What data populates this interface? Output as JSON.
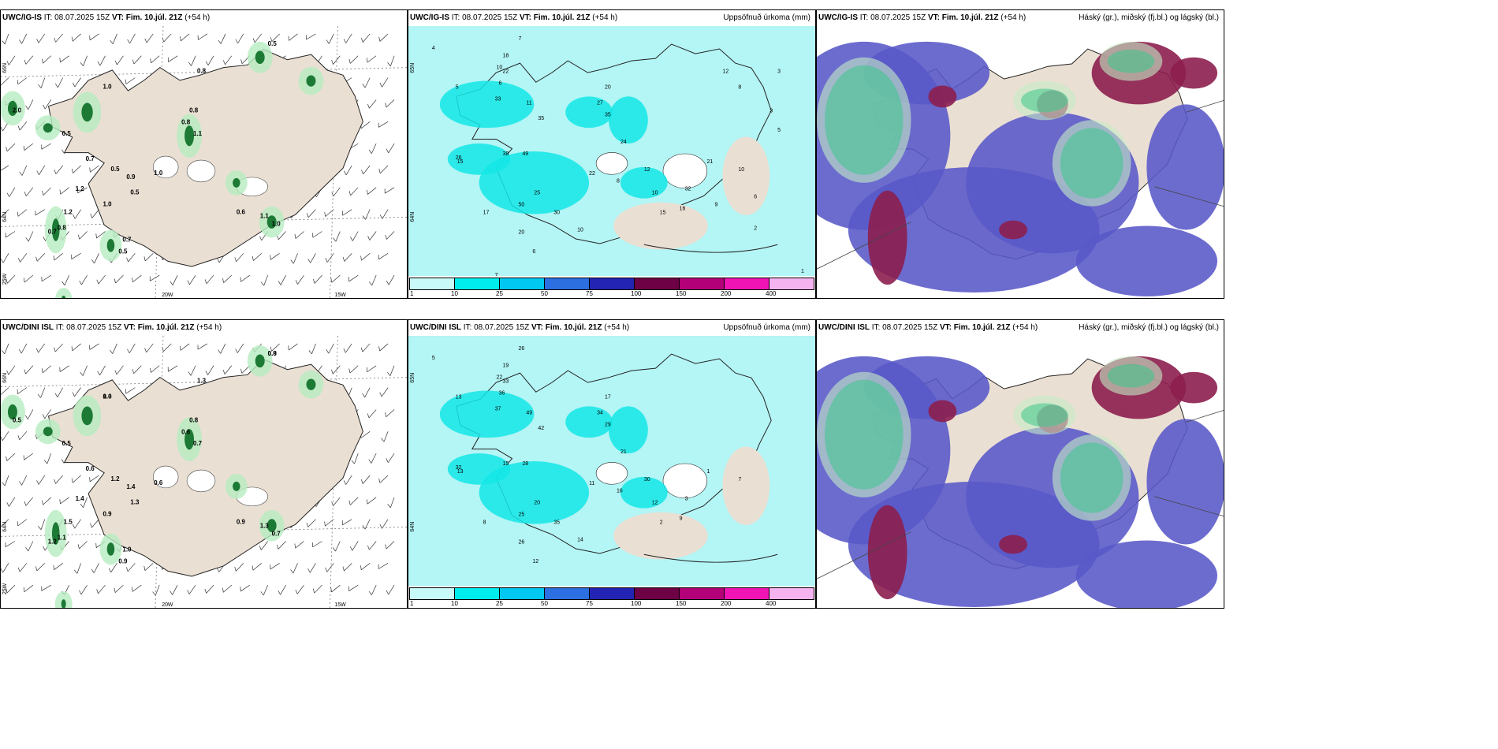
{
  "panels": [
    {
      "model": "UWC/IG-IS",
      "it_label": "IT:",
      "it": "08.07.2025 15Z",
      "vt_label": "VT:",
      "vt": "Fim. 10.júl. 21Z",
      "lead": "(+54 h)",
      "right": "",
      "lon_labels": [
        "20W",
        "15W"
      ],
      "lat_labels": [
        "66N",
        "64N",
        "25W"
      ],
      "values": [
        "0.5",
        "1.0",
        "2.0",
        "0.8",
        "0.8",
        "0.8",
        "1.1",
        "0.5",
        "0.7",
        "0.5",
        "1.2",
        "0.9",
        "0.5",
        "1.0",
        "1.0",
        "0.7",
        "0.5",
        "1.2",
        "0.8",
        "0.7",
        "0.6",
        "1.1",
        "1.0"
      ]
    },
    {
      "model": "UWC/IG-IS",
      "it_label": "IT:",
      "it": "08.07.2025 15Z",
      "vt_label": "VT:",
      "vt": "Fim. 10.júl. 21Z",
      "lead": "(+54 h)",
      "right": "Uppsöfnuð úrkoma (mm)",
      "lat_labels": [
        "65N",
        "64N"
      ],
      "values": [
        "4",
        "7",
        "5",
        "10",
        "6",
        "18",
        "22",
        "33",
        "11",
        "35",
        "26",
        "38",
        "49",
        "25",
        "50",
        "30",
        "20",
        "10",
        "6",
        "17",
        "15",
        "22",
        "27",
        "35",
        "24",
        "20",
        "8",
        "12",
        "10",
        "16",
        "15",
        "32",
        "21",
        "10",
        "6",
        "3",
        "5",
        "8",
        "12",
        "9",
        "2",
        "3",
        "1",
        "7"
      ]
    },
    {
      "model": "UWC/IG-IS",
      "it_label": "IT:",
      "it": "08.07.2025 15Z",
      "vt_label": "VT:",
      "vt": "Fim. 10.júl. 21Z",
      "lead": "(+54 h)",
      "right": "Háský (gr.), miðský (fj.bl.) og lágský (bl.)"
    },
    {
      "model": "UWC/DINI ISL",
      "it_label": "IT:",
      "it": "08.07.2025 15Z",
      "vt_label": "VT:",
      "vt": "Fim. 10.júl. 21Z",
      "lead": "(+54 h)",
      "right": "",
      "lon_labels": [
        "20W",
        "15W"
      ],
      "lat_labels": [
        "66N",
        "64N",
        "25W"
      ],
      "values": [
        "0.8",
        "0.6",
        "0.5",
        "1.3",
        "0.8",
        "0.6",
        "0.7",
        "0.5",
        "0.6",
        "1.2",
        "1.4",
        "1.4",
        "1.3",
        "0.6",
        "0.9",
        "1.0",
        "0.9",
        "1.5",
        "1.1",
        "1.2",
        "0.9",
        "1.3",
        "0.7",
        "0.9",
        "1.0"
      ]
    },
    {
      "model": "UWC/DINI ISL",
      "it_label": "IT:",
      "it": "08.07.2025 15Z",
      "vt_label": "VT:",
      "vt": "Fim. 10.júl. 21Z",
      "lead": "(+54 h)",
      "right": "Uppsöfnuð úrkoma (mm)",
      "lat_labels": [
        "65N",
        "64N"
      ],
      "values": [
        "5",
        "26",
        "13",
        "22",
        "36",
        "19",
        "33",
        "37",
        "49",
        "42",
        "32",
        "15",
        "28",
        "20",
        "25",
        "35",
        "26",
        "14",
        "12",
        "8",
        "13",
        "11",
        "34",
        "29",
        "21",
        "17",
        "16",
        "30",
        "12",
        "9",
        "2",
        "3",
        "1",
        "7"
      ]
    },
    {
      "model": "UWC/DINI ISL",
      "it_label": "IT:",
      "it": "08.07.2025 15Z",
      "vt_label": "VT:",
      "vt": "Fim. 10.júl. 21Z",
      "lead": "(+54 h)",
      "right": "Háský (gr.), miðský (fj.bl.) og lágský (bl.)"
    }
  ],
  "colorbar": {
    "ticks": [
      "1",
      "10",
      "25",
      "50",
      "75",
      "100",
      "150",
      "200",
      "400"
    ],
    "colors": [
      "#c8fafa",
      "#00eded",
      "#00c8f0",
      "#2b6fe0",
      "#2323b4",
      "#6e0046",
      "#b40078",
      "#f014b4",
      "#f5b4f0"
    ]
  },
  "colors": {
    "land": "#eadfd3",
    "precip_light": "#b4f5f5",
    "precip_mid": "#14e6e6",
    "cloud_low": "#5858c8",
    "cloud_mid": "#8c1e4e",
    "cloud_high": "#3cc88c",
    "green_precip": "#34a853"
  }
}
